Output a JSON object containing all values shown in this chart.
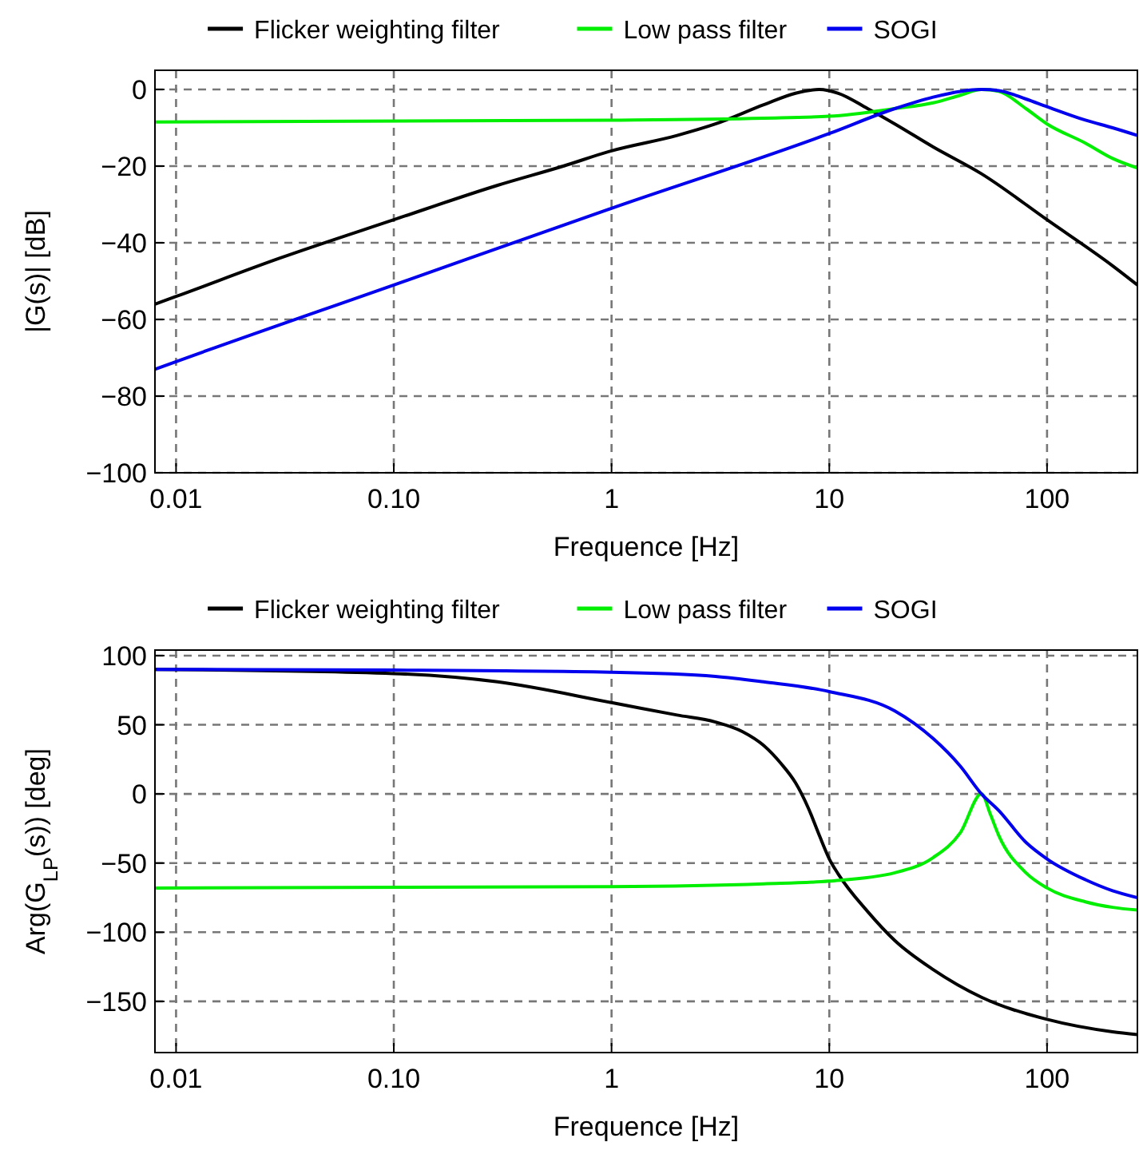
{
  "chart_data": [
    {
      "type": "line",
      "xlabel": "Frequence [Hz]",
      "ylabel": "|G(s)| [dB]",
      "log": "x",
      "grid": true,
      "legend": "top",
      "line_style": "solid",
      "xlim": [
        0.008,
        260
      ],
      "xticks": [
        0.01,
        {
          "value": 0.1,
          "label": "0.10"
        },
        1,
        10,
        100
      ],
      "ylim": [
        -100,
        5
      ],
      "yticks": [
        {
          "value": -100,
          "label": "−100"
        },
        {
          "value": -80,
          "label": "−80"
        },
        {
          "value": -60,
          "label": "−60"
        },
        {
          "value": -40,
          "label": "−40"
        },
        {
          "value": -20,
          "label": "−20"
        },
        0
      ],
      "series": [
        {
          "name": "Flicker weighting filter",
          "color": "#000000",
          "x": [
            0.008,
            0.01,
            0.03,
            0.1,
            0.3,
            0.6,
            1,
            2,
            3,
            5,
            7,
            9,
            11,
            15,
            20,
            30,
            50,
            100,
            200,
            260
          ],
          "values": [
            -56,
            -54,
            -44,
            -34,
            -25,
            -20,
            -16,
            -12,
            -9,
            -4,
            -1,
            0,
            -1,
            -5,
            -9,
            -15,
            -22,
            -34,
            -46,
            -51
          ]
        },
        {
          "name": "Low pass filter",
          "color": "#00ee00",
          "x": [
            0.008,
            1,
            5,
            10,
            20,
            30,
            40,
            50,
            60,
            80,
            100,
            150,
            200,
            260
          ],
          "values": [
            -8.5,
            -8,
            -7.5,
            -7,
            -5,
            -3.5,
            -1.5,
            0,
            -0.5,
            -5,
            -9,
            -14,
            -18,
            -20.5
          ]
        },
        {
          "name": "SOGI",
          "color": "#0000ee",
          "x": [
            0.008,
            0.01,
            0.1,
            1,
            10,
            20,
            30,
            40,
            50,
            60,
            80,
            100,
            150,
            200,
            260
          ],
          "values": [
            -73,
            -71,
            -51,
            -31,
            -11.5,
            -5,
            -2,
            -0.5,
            0,
            -0.3,
            -2.5,
            -4.5,
            -8,
            -10,
            -12
          ]
        }
      ]
    },
    {
      "type": "line",
      "xlabel": "Frequence [Hz]",
      "ylabel": "Arg(G$_{LP}$(s)) [deg]",
      "log": "x",
      "grid": true,
      "legend": "top",
      "line_style": "solid",
      "xlim": [
        0.008,
        260
      ],
      "xticks": [
        0.01,
        {
          "value": 0.1,
          "label": "0.10"
        },
        1,
        10,
        100
      ],
      "ylim": [
        -187,
        104
      ],
      "yticks": [
        {
          "value": -150,
          "label": "−150"
        },
        {
          "value": -100,
          "label": "−100"
        },
        {
          "value": -50,
          "label": "−50"
        },
        0,
        50,
        100
      ],
      "series": [
        {
          "name": "Flicker weighting filter",
          "color": "#000000",
          "x": [
            0.008,
            0.1,
            0.3,
            1,
            2,
            3,
            4,
            5,
            6,
            7,
            8,
            9,
            10,
            11,
            15,
            20,
            30,
            50,
            100,
            200,
            260
          ],
          "values": [
            90,
            87,
            81,
            66,
            57,
            52,
            45,
            35,
            22,
            8,
            -10,
            -30,
            -47,
            -58,
            -85,
            -106,
            -127,
            -147,
            -163,
            -172,
            -174
          ]
        },
        {
          "name": "Low pass filter",
          "color": "#00ee00",
          "x": [
            0.008,
            1,
            5,
            10,
            20,
            30,
            40,
            50,
            55,
            60,
            80,
            100,
            150,
            200,
            260
          ],
          "values": [
            -68,
            -67,
            -65,
            -63,
            -57,
            -46,
            -28,
            0,
            -15,
            -30,
            -57,
            -68,
            -78,
            -82,
            -84
          ]
        },
        {
          "name": "SOGI",
          "color": "#0000ee",
          "x": [
            0.008,
            0.1,
            1,
            3,
            5,
            10,
            20,
            30,
            40,
            50,
            60,
            80,
            100,
            150,
            200,
            260
          ],
          "values": [
            90,
            89.5,
            88,
            85,
            81,
            74,
            60,
            40,
            20,
            0,
            -12,
            -35,
            -47,
            -62,
            -70,
            -75
          ]
        }
      ]
    }
  ]
}
